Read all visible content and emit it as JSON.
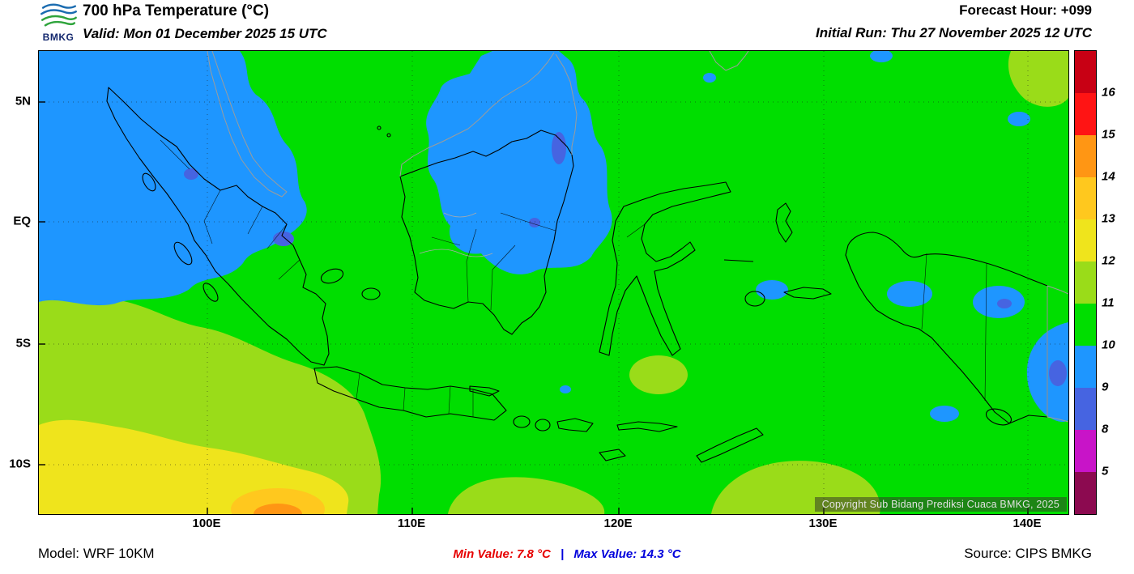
{
  "header": {
    "logo_text": "BMKG",
    "title": "700 hPa Temperature (°C)",
    "valid": "Valid: Mon 01 December 2025 15 UTC",
    "forecast_hour": "Forecast Hour: +099",
    "initial_run": "Initial Run: Thu 27 November 2025 12 UTC"
  },
  "map": {
    "lat_labels": [
      "5N",
      "EQ",
      "5S",
      "10S"
    ],
    "lon_labels": [
      "100E",
      "110E",
      "120E",
      "130E",
      "140E"
    ],
    "copyright": "Copyright Sub Bidang Prediksi Cuaca BMKG, 2025"
  },
  "legend": {
    "units": "°C",
    "boundary_labels": [
      "16",
      "15",
      "14",
      "13",
      "12",
      "11",
      "10",
      "9",
      "8",
      "5"
    ],
    "segment_colors_top_to_bottom": [
      "#C80014",
      "#FF1414",
      "#FF9614",
      "#FFC81E",
      "#EFE41C",
      "#9ADC19",
      "#00DE00",
      "#1E96FF",
      "#4664E1",
      "#C814C8",
      "#8C0A50"
    ]
  },
  "footer": {
    "model": "Model: WRF 10KM",
    "min_text": "Min Value: 7.8 °C",
    "separator": "|",
    "max_text": "Max Value: 14.3 °C",
    "source": "Source: CIPS BMKG"
  },
  "palette": {
    "c8": "#4664E1",
    "c9": "#1E96FF",
    "c10": "#00DE00",
    "c11": "#9ADC19",
    "c12": "#EFE41C",
    "c13": "#FFC81E",
    "c14": "#FF9614",
    "min_value": "#E60000",
    "max_value": "#0000DC",
    "logo_blue": "#1B6CB0",
    "logo_green": "#2FA43C"
  }
}
